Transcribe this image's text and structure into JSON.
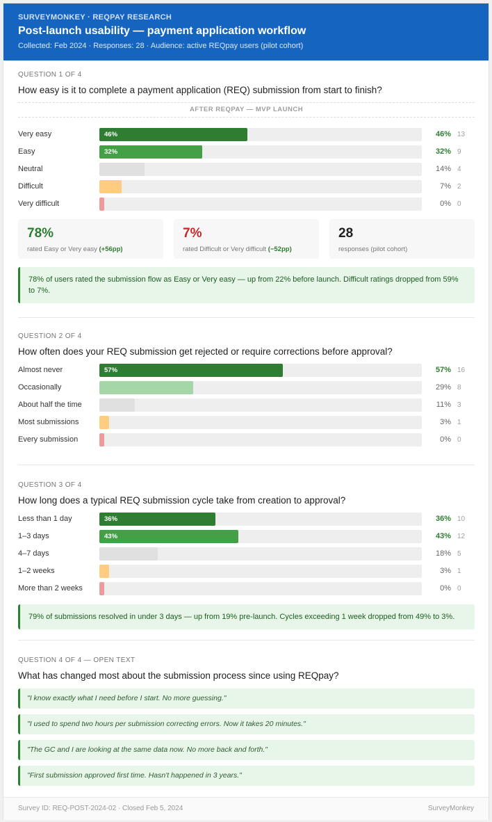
{
  "header": {
    "eyebrow": "SURVEYMONKEY · REQPAY RESEARCH",
    "title": "Post-launch usability — payment application workflow",
    "meta": "Collected: Feb 2024  ·  Responses: 28  ·  Audience: active REQpay users (pilot cohort)"
  },
  "colors": {
    "dark": "#2e7d32",
    "green": "#43a047",
    "light": "#a5d6a7",
    "grey": "#e0e0e0",
    "amber": "#ffcc80",
    "red": "#ef9a9a"
  },
  "q1": {
    "label": "QUESTION 1 OF 4",
    "title": "How easy is it to complete a payment application (REQ) submission from start to finish?",
    "phase": "AFTER REQPAY — MVP LAUNCH",
    "rows": [
      {
        "label": "Very easy",
        "pct": 46,
        "count": 13,
        "tone": "dark",
        "hi": true
      },
      {
        "label": "Easy",
        "pct": 32,
        "count": 9,
        "tone": "green",
        "hi": true
      },
      {
        "label": "Neutral",
        "pct": 14,
        "count": 4,
        "tone": "grey"
      },
      {
        "label": "Difficult",
        "pct": 7,
        "count": 2,
        "tone": "amber"
      },
      {
        "label": "Very difficult",
        "pct": 0,
        "count": 0,
        "tone": "red"
      }
    ],
    "stats": [
      {
        "value": "78%",
        "text": "rated Easy or Very easy",
        "delta": "(+56pp)",
        "color": "#2e7d32"
      },
      {
        "value": "7%",
        "text": "rated Difficult or Very difficult",
        "delta": "(−52pp)",
        "color": "#c62828"
      },
      {
        "value": "28",
        "text": "responses (pilot cohort)",
        "delta": "",
        "color": "#212121"
      }
    ],
    "insight": "78% of users rated the submission flow as Easy or Very easy — up from 22% before launch. Difficult ratings dropped from 59% to 7%."
  },
  "q2": {
    "label": "QUESTION 2 OF 4",
    "title": "How often does your REQ submission get rejected or require corrections before approval?",
    "rows": [
      {
        "label": "Almost never",
        "pct": 57,
        "count": 16,
        "tone": "dark",
        "hi": true
      },
      {
        "label": "Occasionally",
        "pct": 29,
        "count": 8,
        "tone": "light"
      },
      {
        "label": "About half the time",
        "pct": 11,
        "count": 3,
        "tone": "grey"
      },
      {
        "label": "Most submissions",
        "pct": 3,
        "count": 1,
        "tone": "amber"
      },
      {
        "label": "Every submission",
        "pct": 0,
        "count": 0,
        "tone": "red"
      }
    ]
  },
  "q3": {
    "label": "QUESTION 3 OF 4",
    "title": "How long does a typical REQ submission cycle take from creation to approval?",
    "rows": [
      {
        "label": "Less than 1 day",
        "pct": 36,
        "count": 10,
        "tone": "dark",
        "hi": true
      },
      {
        "label": "1–3 days",
        "pct": 43,
        "count": 12,
        "tone": "green",
        "hi": true
      },
      {
        "label": "4–7 days",
        "pct": 18,
        "count": 5,
        "tone": "grey"
      },
      {
        "label": "1–2 weeks",
        "pct": 3,
        "count": 1,
        "tone": "amber"
      },
      {
        "label": "More than 2 weeks",
        "pct": 0,
        "count": 0,
        "tone": "red"
      }
    ],
    "insight": "79% of submissions resolved in under 3 days — up from 19% pre-launch. Cycles exceeding 1 week dropped from 49% to 3%."
  },
  "q4": {
    "label": "QUESTION 4 OF 4 — OPEN TEXT",
    "title": "What has changed most about the submission process since using REQpay?",
    "quotes": [
      "\"I know exactly what I need before I start. No more guessing.\"",
      "\"I used to spend two hours per submission correcting errors. Now it takes 20 minutes.\"",
      "\"The GC and I are looking at the same data now. No more back and forth.\"",
      "\"First submission approved first time. Hasn't happened in 3 years.\""
    ]
  },
  "footer": {
    "left": "Survey ID: REQ-POST-2024-02  ·  Closed Feb 5, 2024",
    "right": "SurveyMonkey"
  }
}
